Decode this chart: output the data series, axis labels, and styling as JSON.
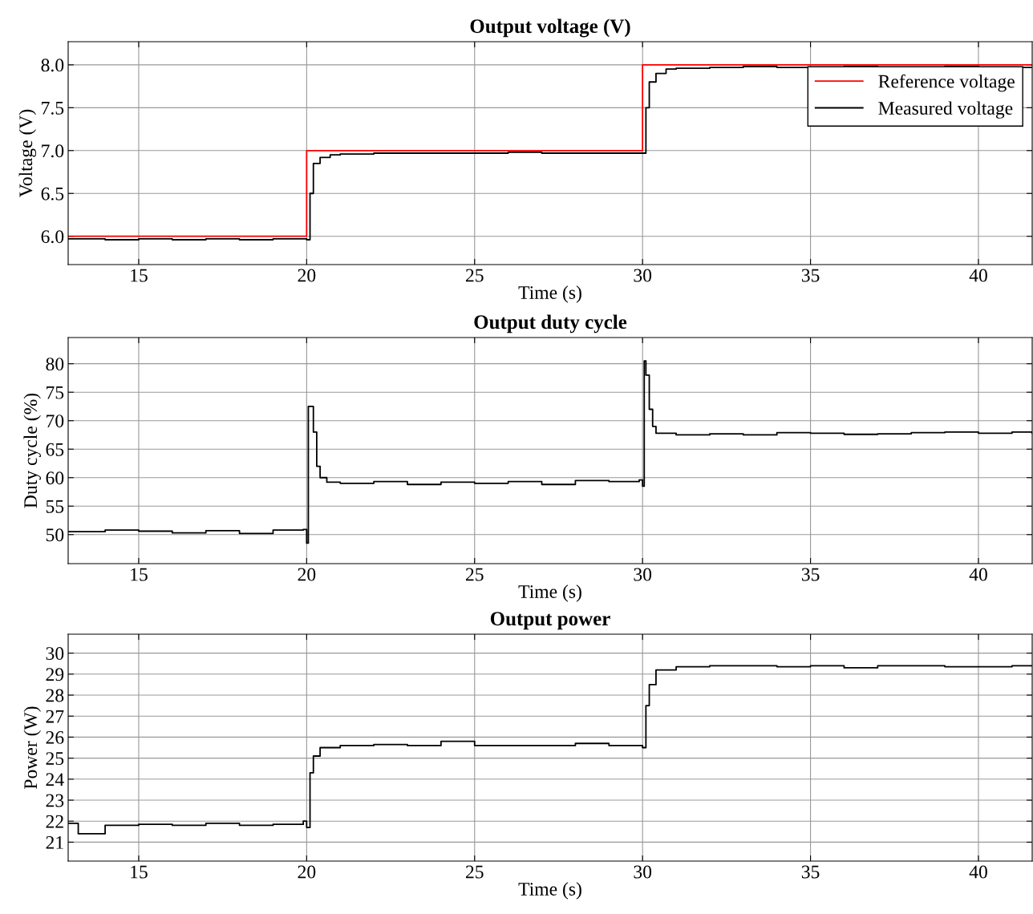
{
  "chart_data": [
    {
      "type": "step",
      "title": "Output voltage (V)",
      "xlabel": "Time (s)",
      "ylabel": "Voltage (V)",
      "xlim": [
        12.9,
        41.6
      ],
      "ylim": [
        5.67,
        8.27
      ],
      "xticks": [
        15,
        20,
        25,
        30,
        35,
        40
      ],
      "yticks": [
        {
          "value": 6,
          "label": "6.0"
        },
        {
          "value": 6.5,
          "label": "6.5"
        },
        {
          "value": 7,
          "label": "7.0"
        },
        {
          "value": 7.5,
          "label": "7.5"
        },
        {
          "value": 8,
          "label": "8.0"
        }
      ],
      "grid": true,
      "legend": "top right",
      "line_style": "solid",
      "series": [
        {
          "name": "Reference voltage",
          "color": "#ff0000",
          "x": [
            12.9,
            20,
            30,
            41.6
          ],
          "values": [
            6.0,
            7.0,
            8.0,
            8.0
          ]
        },
        {
          "name": "Measured voltage",
          "color": "#000000",
          "x": [
            12.9,
            14,
            15,
            16,
            17,
            18,
            19,
            20,
            20.05,
            20.1,
            20.2,
            20.4,
            20.7,
            21,
            22,
            23,
            24,
            25,
            26,
            27,
            28,
            29,
            30,
            30.05,
            30.1,
            30.2,
            30.4,
            30.7,
            31,
            32,
            33,
            34,
            35,
            36,
            37,
            38,
            39,
            40,
            41,
            41.6
          ],
          "values": [
            5.97,
            5.96,
            5.97,
            5.96,
            5.97,
            5.96,
            5.97,
            5.96,
            5.96,
            6.5,
            6.85,
            6.92,
            6.95,
            6.96,
            6.97,
            6.97,
            6.97,
            6.97,
            6.98,
            6.97,
            6.97,
            6.97,
            6.97,
            6.97,
            7.5,
            7.8,
            7.9,
            7.95,
            7.96,
            7.97,
            7.98,
            7.97,
            7.97,
            7.98,
            7.97,
            7.97,
            7.98,
            7.97,
            7.97,
            7.97
          ]
        }
      ]
    },
    {
      "type": "step",
      "title": "Output duty cycle",
      "xlabel": "Time (s)",
      "ylabel": "Duty cycle (%)",
      "xlim": [
        12.9,
        41.6
      ],
      "ylim": [
        44.9,
        84.6
      ],
      "xticks": [
        15,
        20,
        25,
        30,
        35,
        40
      ],
      "yticks": [
        50,
        55,
        60,
        65,
        70,
        75,
        80
      ],
      "grid": true,
      "line_style": "solid",
      "series": [
        {
          "color": "#000000",
          "x": [
            12.9,
            14,
            15,
            16,
            17,
            18,
            19,
            19.9,
            20.0,
            20.05,
            20.2,
            20.3,
            20.4,
            20.6,
            21,
            22,
            23,
            24,
            25,
            26,
            27,
            28,
            29,
            29.9,
            30.0,
            30.05,
            30.1,
            30.2,
            30.3,
            30.4,
            31,
            32,
            33,
            34,
            35,
            36,
            37,
            38,
            39,
            40,
            41,
            41.6
          ],
          "values": [
            50.5,
            50.8,
            50.6,
            50.3,
            50.7,
            50.2,
            50.8,
            50.9,
            48.5,
            72.5,
            68,
            62,
            60,
            59.2,
            59,
            59.3,
            58.8,
            59.2,
            59.0,
            59.3,
            58.8,
            59.5,
            59.3,
            59.6,
            58.5,
            80.5,
            78,
            72,
            69,
            67.8,
            67.5,
            67.7,
            67.5,
            67.9,
            67.8,
            67.6,
            67.7,
            67.9,
            68,
            67.8,
            68,
            67.8
          ]
        }
      ]
    },
    {
      "type": "step",
      "title": "Output power",
      "xlabel": "Time (s)",
      "ylabel": "Power (W)",
      "xlim": [
        12.9,
        41.6
      ],
      "ylim": [
        20.1,
        30.9
      ],
      "xticks": [
        15,
        20,
        25,
        30,
        35,
        40
      ],
      "yticks": [
        21,
        22,
        23,
        24,
        25,
        26,
        27,
        28,
        29,
        30
      ],
      "grid": true,
      "line_style": "solid",
      "series": [
        {
          "color": "#000000",
          "x": [
            12.9,
            13.2,
            14,
            15,
            16,
            17,
            18,
            19,
            19.9,
            20.0,
            20.1,
            20.2,
            20.4,
            21,
            22,
            23,
            24,
            25,
            26,
            27,
            28,
            29,
            29.9,
            30.0,
            30.1,
            30.2,
            30.4,
            31,
            32,
            33,
            34,
            35,
            36,
            37,
            38,
            39,
            40,
            41,
            41.6
          ],
          "values": [
            21.9,
            21.4,
            21.8,
            21.85,
            21.8,
            21.9,
            21.8,
            21.85,
            22.0,
            21.7,
            24.3,
            25.1,
            25.5,
            25.6,
            25.65,
            25.6,
            25.8,
            25.6,
            25.6,
            25.6,
            25.7,
            25.6,
            25.6,
            25.5,
            27.5,
            28.5,
            29.2,
            29.35,
            29.4,
            29.4,
            29.35,
            29.4,
            29.3,
            29.4,
            29.4,
            29.35,
            29.35,
            29.4,
            29.4
          ]
        }
      ]
    }
  ]
}
